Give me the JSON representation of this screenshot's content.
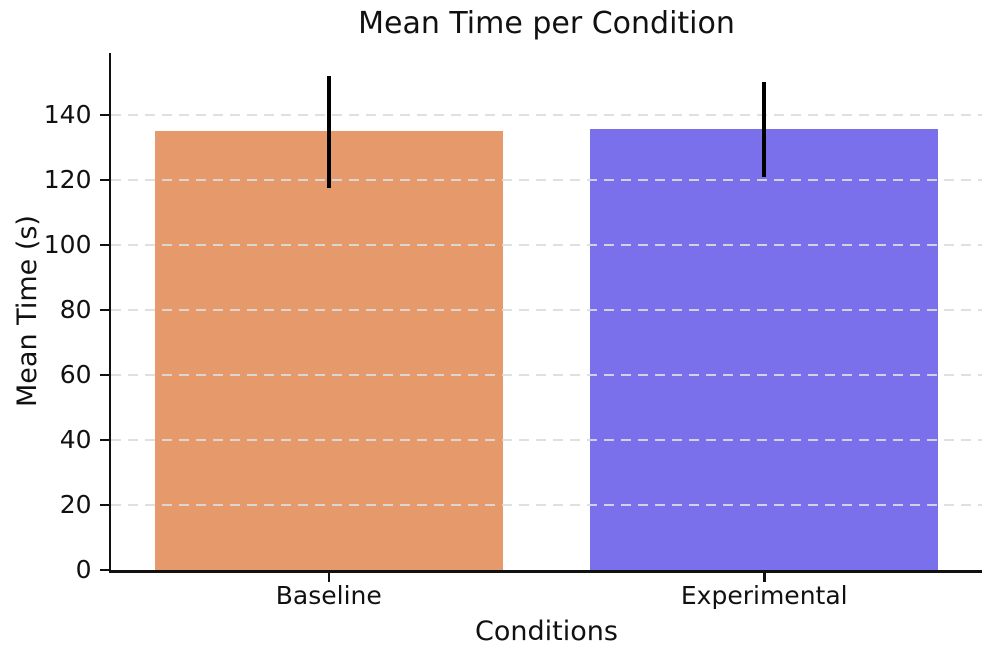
{
  "figure": {
    "title": "Mean Time per Condition",
    "xlabel": "Conditions",
    "ylabel": "Mean Time (s)"
  },
  "chart_data": {
    "type": "bar",
    "title": "Mean Time per Condition",
    "xlabel": "Conditions",
    "ylabel": "Mean Time (s)",
    "categories": [
      "Baseline",
      "Experimental"
    ],
    "series": [
      {
        "name": "Mean Time",
        "values": [
          135,
          135.5
        ]
      }
    ],
    "error_bars": {
      "low": [
        117.5,
        121
      ],
      "high": [
        152,
        150
      ]
    },
    "bar_colors": [
      "#E6996B",
      "#7B70EC"
    ],
    "error_bar_color": "#000000",
    "yticks": [
      0,
      20,
      40,
      60,
      80,
      100,
      120,
      140
    ],
    "ylim": [
      0,
      159
    ],
    "xlim_categories": 2,
    "bar_width_fraction": 0.8,
    "grid": {
      "axis": "y",
      "style": "dashed",
      "color": "#dcdcdc",
      "drawn_over_bars": true
    },
    "legend": "none",
    "background": "#ffffff",
    "spines": [
      "left",
      "bottom"
    ],
    "text_color": "#111111"
  }
}
